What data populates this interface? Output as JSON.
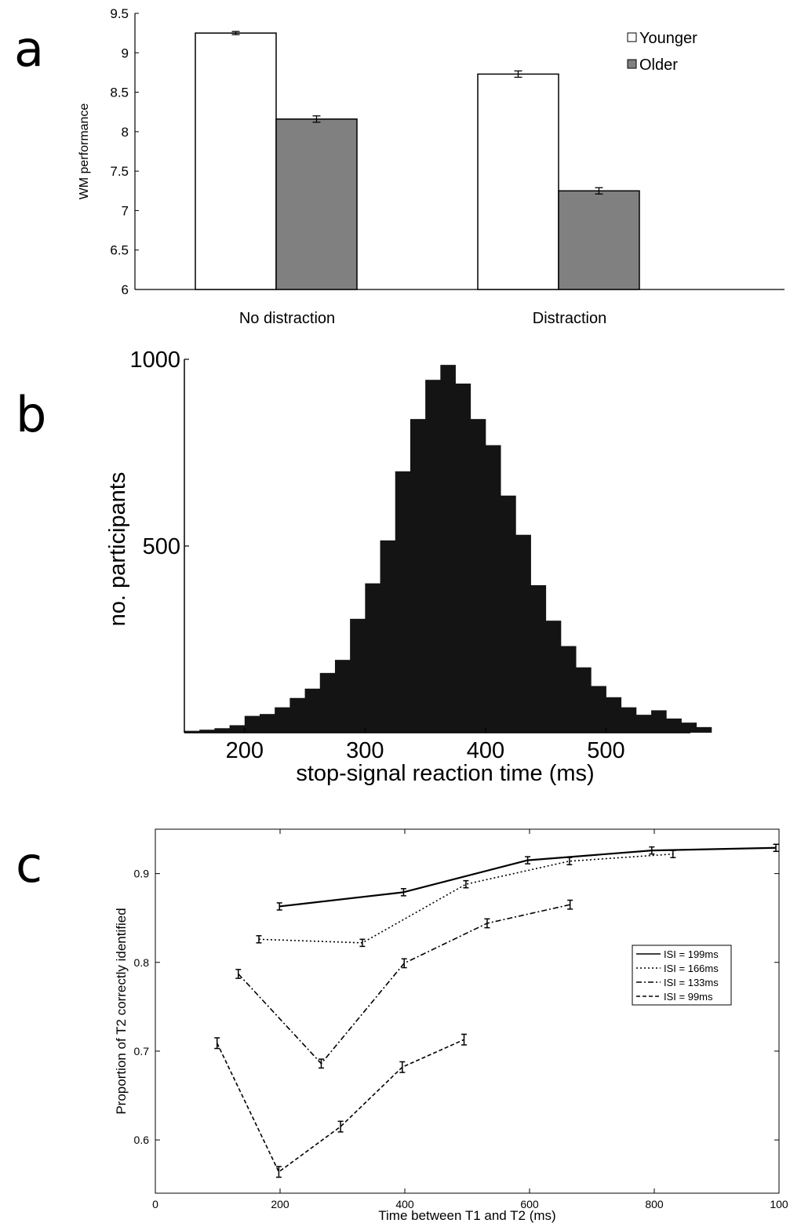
{
  "panel_labels": [
    "a",
    "b",
    "c"
  ],
  "chart_data": [
    {
      "type": "bar",
      "panel": "a",
      "categories": [
        "No distraction",
        "Distraction"
      ],
      "series": [
        {
          "name": "Younger",
          "values": [
            9.25,
            8.73
          ],
          "errors": [
            0.02,
            0.04
          ],
          "color": "#ffffff"
        },
        {
          "name": "Older",
          "values": [
            8.16,
            7.25
          ],
          "errors": [
            0.04,
            0.04
          ],
          "color": "#808080"
        }
      ],
      "title": "",
      "xlabel": "",
      "ylabel": "WM performance",
      "ylim": [
        6,
        9.5
      ],
      "yticks": [
        "6",
        "6.5",
        "7",
        "7.5",
        "8",
        "8.5",
        "9",
        "9.5"
      ],
      "legend_position": "top-right",
      "grid": false
    },
    {
      "type": "bar",
      "panel": "b",
      "subtype": "histogram",
      "bin_width": 12.5,
      "bins_start": 150,
      "values": [
        5,
        8,
        12,
        20,
        45,
        50,
        68,
        93,
        118,
        160,
        195,
        305,
        400,
        515,
        700,
        840,
        945,
        985,
        935,
        840,
        770,
        635,
        530,
        395,
        300,
        232,
        175,
        125,
        95,
        68,
        48,
        60,
        38,
        27,
        15
      ],
      "title": "",
      "xlabel": "stop-signal reaction time (ms)",
      "ylabel": "no. participants",
      "xlim": [
        150,
        570
      ],
      "ylim": [
        0,
        1000
      ],
      "xticks": [
        "200",
        "300",
        "400",
        "500"
      ],
      "yticks": [
        "500",
        "1000"
      ],
      "color": "#141414",
      "grid": false
    },
    {
      "type": "line",
      "panel": "c",
      "series": [
        {
          "name": "ISI = 199ms",
          "x": [
            199,
            398,
            597,
            796,
            995
          ],
          "y": [
            0.863,
            0.879,
            0.915,
            0.926,
            0.929
          ],
          "err": 0.004,
          "dash": ""
        },
        {
          "name": "ISI = 166ms",
          "x": [
            166,
            332,
            498,
            664,
            830
          ],
          "y": [
            0.826,
            0.822,
            0.888,
            0.914,
            0.922
          ],
          "err": 0.004,
          "dash": "2,3"
        },
        {
          "name": "ISI = 133ms",
          "x": [
            133,
            266,
            399,
            532,
            665
          ],
          "y": [
            0.787,
            0.686,
            0.799,
            0.844,
            0.865
          ],
          "err": 0.005,
          "dash": "7,3,2,3"
        },
        {
          "name": "ISI = 99ms",
          "x": [
            99,
            198,
            297,
            396,
            495
          ],
          "y": [
            0.709,
            0.564,
            0.615,
            0.682,
            0.713
          ],
          "err": 0.006,
          "dash": "5,3"
        }
      ],
      "title": "",
      "xlabel": "Time between T1 and T2 (ms)",
      "ylabel": "Proportion of T2 correctly identified",
      "xlim": [
        0,
        1000
      ],
      "ylim": [
        0.54,
        0.95
      ],
      "xticks": [
        "0",
        "200",
        "400",
        "600",
        "800",
        "100"
      ],
      "yticks": [
        "0.6",
        "0.7",
        "0.8",
        "0.9"
      ],
      "legend_position": "center-right",
      "grid": false
    }
  ]
}
